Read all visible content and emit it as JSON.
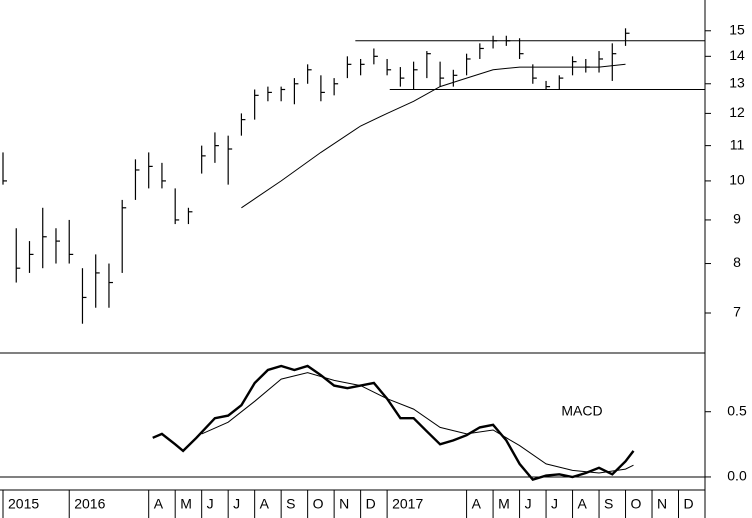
{
  "chart_data": [
    {
      "type": "hlc",
      "log_scale": true,
      "color": "#000000",
      "xlim": [
        0.5,
        27
      ],
      "ylim": [
        6.3,
        16.3
      ],
      "yticks": [
        7,
        8,
        9,
        10,
        11,
        12,
        13,
        14,
        15
      ],
      "x": [
        0.5,
        1,
        1.5,
        2,
        2.5,
        3,
        3.5,
        4,
        4.5,
        5,
        5.5,
        6,
        6.5,
        7,
        7.5,
        8,
        8.5,
        9,
        9.5,
        10,
        10.5,
        11,
        11.5,
        12,
        12.5,
        13,
        13.5,
        14,
        14.5,
        15,
        15.5,
        16,
        16.5,
        17,
        17.5,
        18,
        18.5,
        19,
        19.5,
        20,
        20.5,
        21,
        21.5,
        22,
        22.5,
        23,
        23.5,
        24
      ],
      "high": [
        10.8,
        8.8,
        8.5,
        9.3,
        8.8,
        9.0,
        7.9,
        8.2,
        8.0,
        9.5,
        10.6,
        10.8,
        10.5,
        9.8,
        9.3,
        11.0,
        11.4,
        11.3,
        12.0,
        12.8,
        12.9,
        12.9,
        13.2,
        13.7,
        13.3,
        13.2,
        14.0,
        13.9,
        14.3,
        13.9,
        13.6,
        13.8,
        14.2,
        13.8,
        13.5,
        14.1,
        14.5,
        14.8,
        14.8,
        14.7,
        13.7,
        13.1,
        13.3,
        14.0,
        13.9,
        14.2,
        14.5,
        15.1
      ],
      "low": [
        9.9,
        7.6,
        7.8,
        7.9,
        8.0,
        8.0,
        6.8,
        7.1,
        7.1,
        7.8,
        9.5,
        9.8,
        9.8,
        8.9,
        8.9,
        10.2,
        10.5,
        9.9,
        11.3,
        11.8,
        12.4,
        12.4,
        12.3,
        13.0,
        12.4,
        12.6,
        13.2,
        13.3,
        13.7,
        13.3,
        12.9,
        12.8,
        13.2,
        12.9,
        12.9,
        13.3,
        13.9,
        14.3,
        14.4,
        13.9,
        13.0,
        12.8,
        12.8,
        13.3,
        13.4,
        13.4,
        13.1,
        14.4
      ],
      "close": [
        10.0,
        7.9,
        8.2,
        8.6,
        8.5,
        8.2,
        7.3,
        7.8,
        7.6,
        9.3,
        10.3,
        10.4,
        10.0,
        9.0,
        9.2,
        10.7,
        11.0,
        10.9,
        11.8,
        12.6,
        12.7,
        12.8,
        13.0,
        13.5,
        12.7,
        13.0,
        13.7,
        13.7,
        14.0,
        13.5,
        13.2,
        13.5,
        14.1,
        13.2,
        13.3,
        13.9,
        14.3,
        14.6,
        14.6,
        14.1,
        13.2,
        12.9,
        13.2,
        13.8,
        13.6,
        13.9,
        14.1,
        14.9
      ],
      "moving_average": {
        "x": [
          9.5,
          11,
          12.5,
          14,
          15,
          16,
          17,
          18,
          19,
          20,
          21,
          22,
          23,
          24
        ],
        "values": [
          9.3,
          10.0,
          10.8,
          11.6,
          12.0,
          12.4,
          12.9,
          13.2,
          13.5,
          13.6,
          13.6,
          13.6,
          13.6,
          13.7
        ]
      },
      "levels": [
        {
          "value": 14.6,
          "from": 13.8
        },
        {
          "value": 12.8,
          "from": 15.1
        }
      ]
    },
    {
      "type": "line",
      "annotation": "MACD",
      "color": "#000000",
      "xlim": [
        0.5,
        27
      ],
      "ylim": [
        -0.1,
        0.95
      ],
      "yticks": [
        {
          "value": 0,
          "label": "0.0"
        },
        0.5
      ],
      "zero_line": true,
      "xticks": [
        {
          "value": 0.5,
          "label": "2015"
        },
        {
          "value": 3,
          "label": "2016"
        },
        {
          "value": 6,
          "label": "A"
        },
        {
          "value": 7,
          "label": "M"
        },
        {
          "value": 8,
          "label": "J"
        },
        {
          "value": 9,
          "label": "J"
        },
        {
          "value": 10,
          "label": "A"
        },
        {
          "value": 11,
          "label": "S"
        },
        {
          "value": 12,
          "label": "O"
        },
        {
          "value": 13,
          "label": "N"
        },
        {
          "value": 14,
          "label": "D"
        },
        {
          "value": 15,
          "label": "2017"
        },
        {
          "value": 18,
          "label": "A"
        },
        {
          "value": 19,
          "label": "M"
        },
        {
          "value": 20,
          "label": "J"
        },
        {
          "value": 21,
          "label": "J"
        },
        {
          "value": 22,
          "label": "A"
        },
        {
          "value": 23,
          "label": "S"
        },
        {
          "value": 24,
          "label": "O"
        },
        {
          "value": 25,
          "label": "N"
        },
        {
          "value": 26,
          "label": "D"
        }
      ],
      "series": [
        {
          "width": 2.4,
          "x": [
            6.15,
            6.5,
            7,
            7.3,
            7.8,
            8.5,
            9,
            9.5,
            10,
            10.5,
            11,
            11.5,
            12,
            12.5,
            13,
            13.5,
            14,
            14.5,
            15,
            15.5,
            16,
            16.5,
            17,
            17.5,
            18,
            18.5,
            19,
            19.5,
            20,
            20.5,
            21,
            21.5,
            22,
            22.5,
            23,
            23.5,
            24,
            24.3
          ],
          "values": [
            0.3,
            0.33,
            0.25,
            0.2,
            0.3,
            0.45,
            0.47,
            0.55,
            0.72,
            0.82,
            0.85,
            0.82,
            0.85,
            0.78,
            0.7,
            0.68,
            0.7,
            0.72,
            0.6,
            0.45,
            0.45,
            0.35,
            0.25,
            0.28,
            0.32,
            0.38,
            0.4,
            0.28,
            0.1,
            -0.02,
            0.01,
            0.02,
            0.0,
            0.03,
            0.07,
            0.02,
            0.12,
            0.2
          ]
        },
        {
          "width": 1,
          "x": [
            8,
            9,
            10,
            11,
            12,
            13,
            14,
            15,
            16,
            17,
            18,
            19,
            20,
            21,
            22,
            23,
            24,
            24.3
          ],
          "values": [
            0.33,
            0.42,
            0.58,
            0.75,
            0.8,
            0.74,
            0.7,
            0.6,
            0.52,
            0.38,
            0.33,
            0.36,
            0.24,
            0.1,
            0.05,
            0.03,
            0.06,
            0.09
          ]
        }
      ]
    }
  ]
}
